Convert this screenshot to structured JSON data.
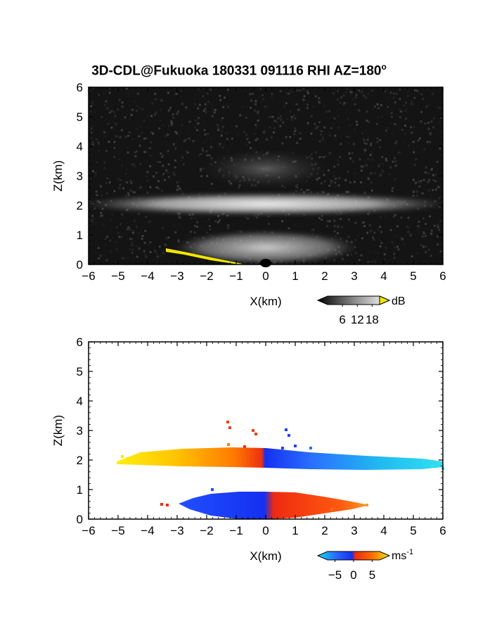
{
  "title": {
    "main": "3D-CDL@Fukuoka 180331 091116 RHI AZ=180",
    "sup": "o"
  },
  "chart_data": [
    {
      "type": "heatmap",
      "variable": "backscatter",
      "xlabel": "X(km)",
      "ylabel": "Z(km)",
      "xlim": [
        -6,
        6
      ],
      "ylim": [
        0,
        6
      ],
      "xticks": [
        "-6",
        "-5",
        "-4",
        "-3",
        "-2",
        "-1",
        "0",
        "1",
        "2",
        "3",
        "4",
        "5",
        "6"
      ],
      "yticks": [
        "0",
        "1",
        "2",
        "3",
        "4",
        "5",
        "6"
      ],
      "colorbar": {
        "unit": "dB",
        "ticks": [
          "6",
          "12",
          "18"
        ],
        "range": [
          0,
          21
        ]
      },
      "colors": {
        "background": "#111111",
        "layer": "#e8e8e8",
        "ground": "#f0e000"
      },
      "layers": [
        {
          "name": "upper",
          "z_center_km": 2.0,
          "x_range_km": [
            -6,
            6
          ]
        },
        {
          "name": "lower",
          "z_center_km": 0.5,
          "x_range_km": [
            -3,
            3
          ]
        }
      ]
    },
    {
      "type": "heatmap",
      "variable": "radial velocity",
      "xlabel": "X(km)",
      "ylabel": "Z(km)",
      "xlim": [
        -6,
        6
      ],
      "ylim": [
        0,
        6
      ],
      "xticks": [
        "-6",
        "-5",
        "-4",
        "-3",
        "-2",
        "-1",
        "0",
        "1",
        "2",
        "3",
        "4",
        "5",
        "6"
      ],
      "yticks": [
        "0",
        "1",
        "2",
        "3",
        "4",
        "5",
        "6"
      ],
      "colorbar": {
        "unit": "ms",
        "unit_sup": "-1",
        "ticks": [
          "-5",
          "0",
          "5"
        ],
        "range": [
          -7,
          7
        ]
      },
      "colors": {
        "negative": "#1f3cff",
        "negative_far": "#27d0f0",
        "positive": "#ee2a10",
        "positive_far": "#ffe600"
      },
      "layers": [
        {
          "name": "upper",
          "z_center_km": 2.0,
          "x_range_km": [
            -5.1,
            6
          ]
        },
        {
          "name": "lower",
          "z_center_km": 0.55,
          "x_range_km": [
            -3.5,
            3.5
          ]
        }
      ]
    }
  ]
}
